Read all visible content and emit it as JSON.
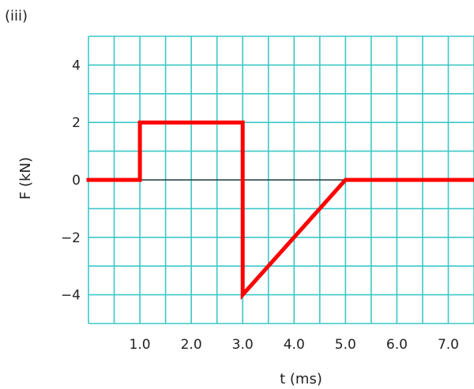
{
  "chart_data": {
    "type": "line",
    "panel_label": "(iii)",
    "xlabel": "t  (ms)",
    "ylabel": "F (kN)",
    "xlim": [
      0,
      7.5
    ],
    "ylim": [
      -5,
      5
    ],
    "x_ticks": [
      {
        "value": 1,
        "label": "1.0"
      },
      {
        "value": 2,
        "label": "2.0"
      },
      {
        "value": 3,
        "label": "3.0"
      },
      {
        "value": 4,
        "label": "4.0"
      },
      {
        "value": 5,
        "label": "5.0"
      },
      {
        "value": 6,
        "label": "6.0"
      },
      {
        "value": 7,
        "label": "7.0"
      }
    ],
    "y_ticks": [
      {
        "value": 4,
        "label": "4"
      },
      {
        "value": 2,
        "label": "2"
      },
      {
        "value": 0,
        "label": "0"
      },
      {
        "value": -2,
        "label": "−2"
      },
      {
        "value": -4,
        "label": "−4"
      }
    ],
    "grid": true,
    "grid_color": "#3cc7c7",
    "series": [
      {
        "color": "#ff0000",
        "points": [
          [
            0,
            0
          ],
          [
            1,
            0
          ],
          [
            1,
            2
          ],
          [
            3,
            2
          ],
          [
            3,
            -4
          ],
          [
            5,
            0
          ],
          [
            7.5,
            0
          ]
        ]
      }
    ]
  }
}
